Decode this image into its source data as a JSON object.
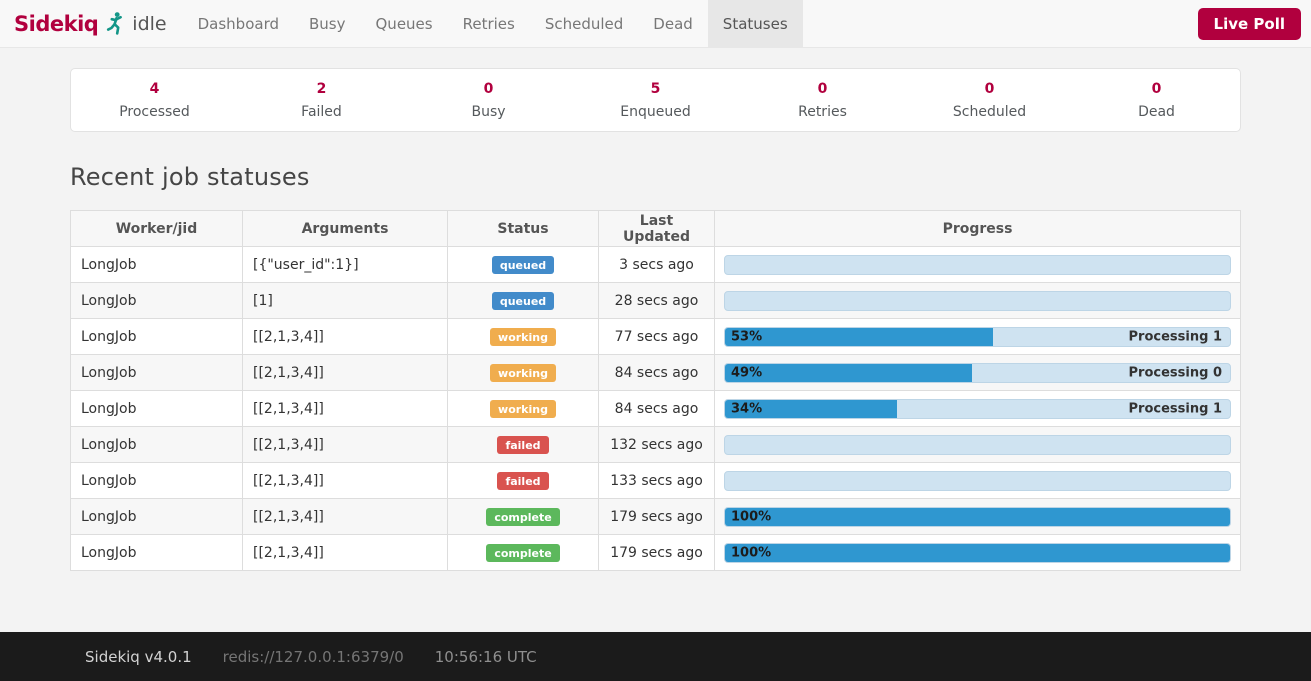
{
  "navbar": {
    "brand": "Sidekiq",
    "status": "idle",
    "items": [
      {
        "label": "Dashboard",
        "active": false
      },
      {
        "label": "Busy",
        "active": false
      },
      {
        "label": "Queues",
        "active": false
      },
      {
        "label": "Retries",
        "active": false
      },
      {
        "label": "Scheduled",
        "active": false
      },
      {
        "label": "Dead",
        "active": false
      },
      {
        "label": "Statuses",
        "active": true
      }
    ],
    "live_poll_label": "Live Poll"
  },
  "stats": [
    {
      "value": "4",
      "label": "Processed"
    },
    {
      "value": "2",
      "label": "Failed"
    },
    {
      "value": "0",
      "label": "Busy"
    },
    {
      "value": "5",
      "label": "Enqueued"
    },
    {
      "value": "0",
      "label": "Retries"
    },
    {
      "value": "0",
      "label": "Scheduled"
    },
    {
      "value": "0",
      "label": "Dead"
    }
  ],
  "main": {
    "heading": "Recent job statuses"
  },
  "table": {
    "headers": [
      "Worker/jid",
      "Arguments",
      "Status",
      "Last Updated",
      "Progress"
    ],
    "rows": [
      {
        "worker": "LongJob",
        "args": "[{\"user_id\":1}]",
        "status": "queued",
        "updated": "3 secs ago",
        "progress_pct": 0,
        "pct_label": "",
        "message": ""
      },
      {
        "worker": "LongJob",
        "args": "[1]",
        "status": "queued",
        "updated": "28 secs ago",
        "progress_pct": 0,
        "pct_label": "",
        "message": ""
      },
      {
        "worker": "LongJob",
        "args": "[[2,1,3,4]]",
        "status": "working",
        "updated": "77 secs ago",
        "progress_pct": 53,
        "pct_label": "53%",
        "message": "Processing 1"
      },
      {
        "worker": "LongJob",
        "args": "[[2,1,3,4]]",
        "status": "working",
        "updated": "84 secs ago",
        "progress_pct": 49,
        "pct_label": "49%",
        "message": "Processing 0"
      },
      {
        "worker": "LongJob",
        "args": "[[2,1,3,4]]",
        "status": "working",
        "updated": "84 secs ago",
        "progress_pct": 34,
        "pct_label": "34%",
        "message": "Processing 1"
      },
      {
        "worker": "LongJob",
        "args": "[[2,1,3,4]]",
        "status": "failed",
        "updated": "132 secs ago",
        "progress_pct": 0,
        "pct_label": "",
        "message": ""
      },
      {
        "worker": "LongJob",
        "args": "[[2,1,3,4]]",
        "status": "failed",
        "updated": "133 secs ago",
        "progress_pct": 0,
        "pct_label": "",
        "message": ""
      },
      {
        "worker": "LongJob",
        "args": "[[2,1,3,4]]",
        "status": "complete",
        "updated": "179 secs ago",
        "progress_pct": 100,
        "pct_label": "100%",
        "message": ""
      },
      {
        "worker": "LongJob",
        "args": "[[2,1,3,4]]",
        "status": "complete",
        "updated": "179 secs ago",
        "progress_pct": 100,
        "pct_label": "100%",
        "message": ""
      }
    ]
  },
  "footer": {
    "version": "Sidekiq v4.0.1",
    "redis": "redis://127.0.0.1:6379/0",
    "time": "10:56:16 UTC"
  },
  "colors": {
    "brand": "#b1003e",
    "runner_icon": "#149688",
    "badge_queued": "#428bca",
    "badge_working": "#f0ad4e",
    "badge_failed": "#d9534f",
    "badge_complete": "#5cb85c",
    "progress_fill": "#2f97d0",
    "progress_track": "#cfe3f1"
  }
}
